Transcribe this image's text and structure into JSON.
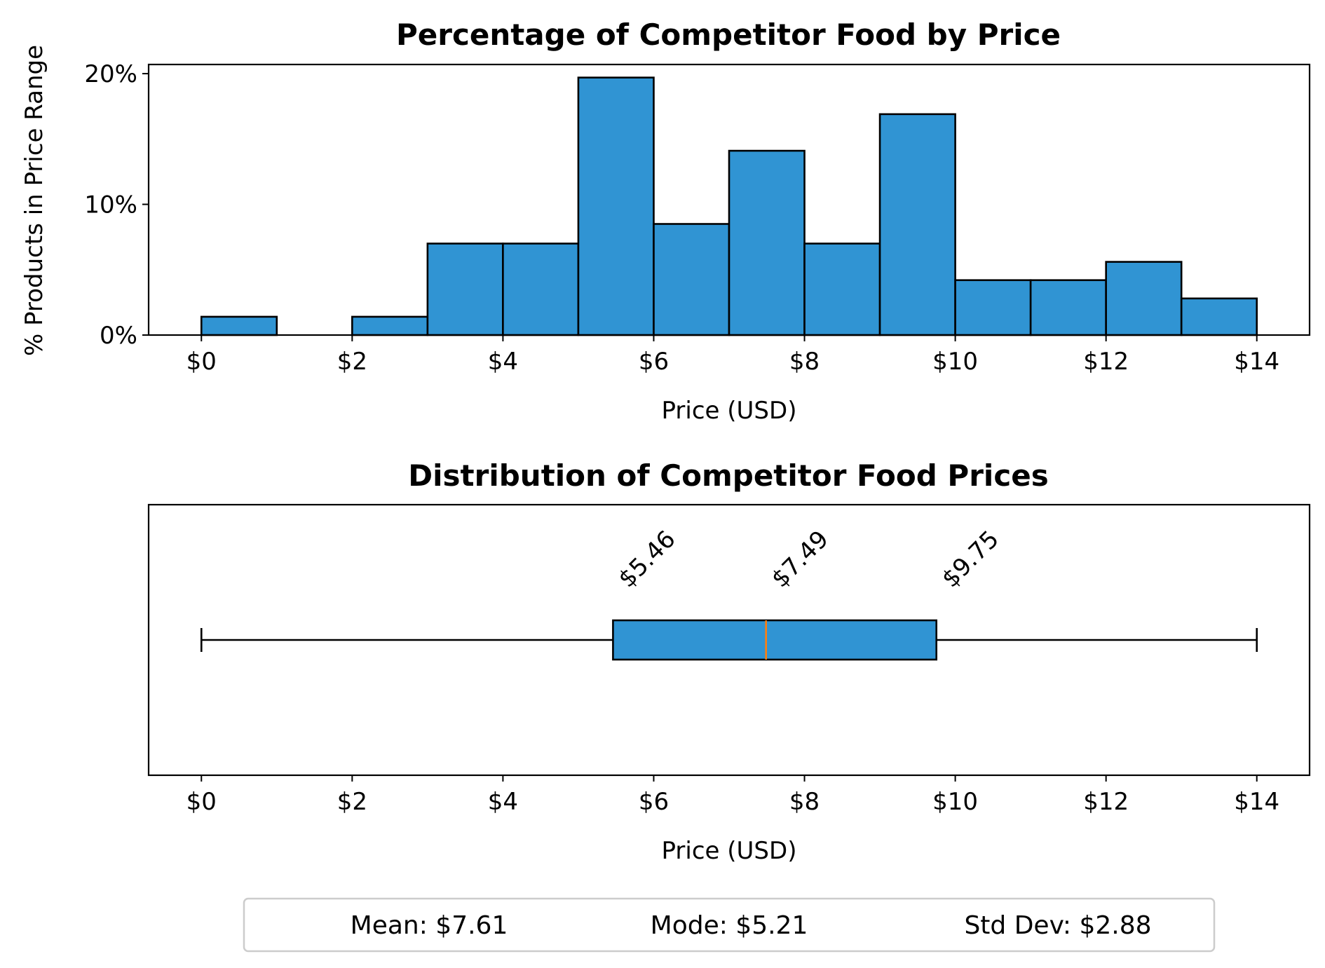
{
  "chart_data": [
    {
      "type": "bar",
      "title": "Percentage of Competitor Food by Price",
      "xlabel": "Price (USD)",
      "ylabel": "% Products in Price Range",
      "bin_edges": [
        0,
        1,
        2,
        3,
        4,
        5,
        6,
        7,
        8,
        9,
        10,
        11,
        12,
        13,
        14
      ],
      "values": [
        1.4,
        0,
        1.4,
        7.0,
        7.0,
        19.7,
        8.5,
        14.1,
        7.0,
        16.9,
        4.2,
        4.2,
        5.6,
        2.8
      ],
      "xlim": [
        -0.7,
        14.7
      ],
      "ylim": [
        0,
        20.7
      ],
      "xticks": [
        0,
        2,
        4,
        6,
        8,
        10,
        12,
        14
      ],
      "xtick_labels": [
        "$0",
        "$2",
        "$4",
        "$6",
        "$8",
        "$10",
        "$12",
        "$14"
      ],
      "yticks": [
        0,
        10,
        20
      ],
      "ytick_labels": [
        "0%",
        "10%",
        "20%"
      ],
      "bar_color": "#3094d3",
      "edge_color": "#000000"
    },
    {
      "type": "box",
      "title": "Distribution of Competitor Food Prices",
      "xlabel": "Price (USD)",
      "min": 0,
      "q1": 5.46,
      "median": 7.49,
      "q3": 9.75,
      "max": 14,
      "annotations": [
        "$5.46",
        "$7.49",
        "$9.75"
      ],
      "xlim": [
        -0.7,
        14.7
      ],
      "xticks": [
        0,
        2,
        4,
        6,
        8,
        10,
        12,
        14
      ],
      "xtick_labels": [
        "$0",
        "$2",
        "$4",
        "$6",
        "$8",
        "$10",
        "$12",
        "$14"
      ],
      "box_color": "#3094d3",
      "median_color": "#ff7f0e"
    }
  ],
  "stats": {
    "mean": "Mean: $7.61",
    "mode": "Mode: $5.21",
    "std": "Std Dev: $2.88"
  }
}
